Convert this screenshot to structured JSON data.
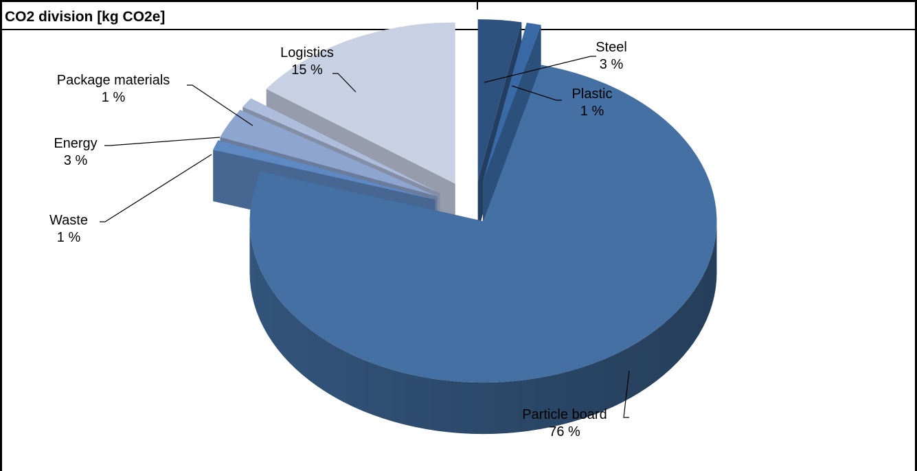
{
  "title": "CO2 division [kg CO2e]",
  "chart_data": {
    "type": "pie",
    "title": "CO2 division [kg CO2e]",
    "three_d": true,
    "exploded": true,
    "slices": [
      {
        "name": "Steel",
        "value": 3,
        "label": "3 %",
        "color": "#2E5280"
      },
      {
        "name": "Plastic",
        "value": 1,
        "label": "1 %",
        "color": "#3A6AA5"
      },
      {
        "name": "Particle board",
        "value": 76,
        "label": "76 %",
        "color": "#4470A4"
      },
      {
        "name": "Waste",
        "value": 1,
        "label": "1 %",
        "color": "#5F89C2"
      },
      {
        "name": "Energy",
        "value": 3,
        "label": "3 %",
        "color": "#8EA5CF"
      },
      {
        "name": "Package materials",
        "value": 1,
        "label": "1 %",
        "color": "#AFBDDC"
      },
      {
        "name": "Logistics",
        "value": 15,
        "label": "15 %",
        "color": "#C8D0E4"
      }
    ]
  }
}
